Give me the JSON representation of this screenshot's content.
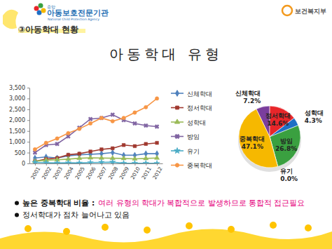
{
  "slide": {
    "org_prefix": "중앙",
    "org": "아동보호전문기관",
    "org_en": "National Child Protection Agency",
    "ministry": "보건복지부",
    "section": "③아동학대 현황",
    "title": "아동학대 유형",
    "bullets": [
      {
        "lead": "높은 중복학대 비율 :",
        "text": "여러 유형의 학대가 복합적으로 발생하므로 통합적 접근필요"
      },
      {
        "text": "정서학대가 점차 늘어나고 있음"
      }
    ]
  },
  "chart_data": [
    {
      "type": "line",
      "categories": [
        "2001",
        "2002",
        "2003",
        "2004",
        "2005",
        "2006",
        "2007",
        "2008",
        "2009",
        "2010",
        "2011",
        "2012"
      ],
      "ylim": [
        0,
        3500
      ],
      "yticks": [
        0,
        500,
        {
          "value": 1000,
          "label": "1,000"
        },
        {
          "value": 1500,
          "label": "1,500"
        },
        {
          "value": 2000,
          "label": "2,000"
        },
        {
          "value": 2500,
          "label": "2,500"
        },
        {
          "value": 3000,
          "label": "3,000"
        },
        {
          "value": 3500,
          "label": "3,500"
        }
      ],
      "grid": false,
      "legend": "right",
      "series": [
        {
          "name": "신체학대",
          "color": "#4f81bd",
          "marker": "diamond",
          "values": [
            250,
            300,
            250,
            350,
            400,
            420,
            450,
            500,
            380,
            380,
            450,
            450
          ]
        },
        {
          "name": "정서학대",
          "color": "#a0392f",
          "marker": "square",
          "values": [
            100,
            200,
            250,
            400,
            450,
            550,
            650,
            700,
            850,
            800,
            900,
            950
          ]
        },
        {
          "name": "성학대",
          "color": "#9bbb59",
          "marker": "triangle",
          "values": [
            100,
            150,
            170,
            200,
            240,
            260,
            250,
            240,
            230,
            210,
            230,
            250
          ]
        },
        {
          "name": "방임",
          "color": "#8064a2",
          "marker": "x",
          "values": [
            500,
            850,
            900,
            1250,
            1650,
            2050,
            2100,
            2250,
            2000,
            1850,
            1750,
            1700
          ]
        },
        {
          "name": "유기",
          "color": "#4bacc6",
          "marker": "star",
          "values": [
            50,
            30,
            20,
            30,
            20,
            40,
            50,
            60,
            10,
            10,
            10,
            5
          ]
        },
        {
          "name": "중복학대",
          "color": "#f79646",
          "marker": "circle",
          "values": [
            650,
            950,
            1150,
            1400,
            1600,
            1850,
            2100,
            1950,
            2100,
            2350,
            2600,
            3000
          ]
        }
      ]
    },
    {
      "type": "pie",
      "categories": [
        "신체학대",
        "정서학대",
        "성학대",
        "방임",
        "유기",
        "중복학대"
      ],
      "values": [
        7.2,
        14.6,
        4.3,
        26.8,
        0.0,
        47.1
      ],
      "value_labels": [
        "7.2%",
        "14.6%",
        "4.3%",
        "26.8%",
        "0.0%",
        "47.1%"
      ],
      "colors": [
        "#7a3e9d",
        "#e8262a",
        "#1f6fc5",
        "#3aa040",
        "#a6a6a6",
        "#f6b800"
      ],
      "data_labels": true
    }
  ]
}
